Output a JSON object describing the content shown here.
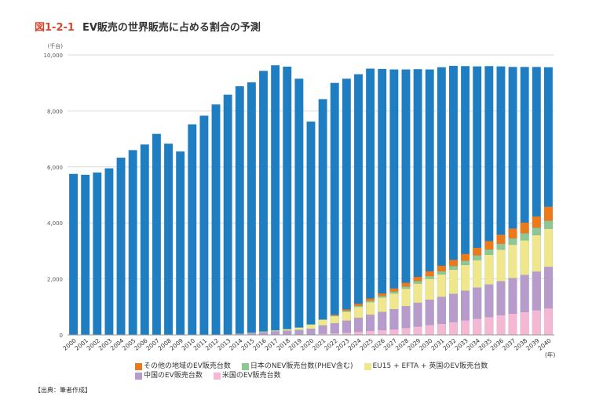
{
  "figure": {
    "number": "図1-2-1",
    "title": "EV販売の世界販売に占める割合の予測",
    "source": "【出典：筆者作成】"
  },
  "colors": {
    "total": "#1f7ec2",
    "other": "#ec7a1a",
    "japan": "#8fc794",
    "eu": "#f0e68c",
    "china": "#b79ccb",
    "us": "#f5b8d4",
    "grid": "#d9d9d9",
    "axis_text": "#555555"
  },
  "chart_data": {
    "type": "bar",
    "ylabel": "(千台)",
    "xlabel": "(年)",
    "ylim": [
      0,
      10000
    ],
    "yticks": [
      "0",
      "2,000",
      "4,000",
      "6,000",
      "8,000",
      "10,000"
    ],
    "categories": [
      "2000",
      "2001",
      "2002",
      "2003",
      "2004",
      "2005",
      "2006",
      "2007",
      "2008",
      "2009",
      "2010",
      "2011",
      "2012",
      "2013",
      "2014",
      "2015",
      "2016",
      "2017",
      "2018",
      "2019",
      "2020",
      "2021",
      "2022",
      "2023",
      "2024",
      "2025",
      "2026",
      "2027",
      "2028",
      "2029",
      "2030",
      "2031",
      "2032",
      "2033",
      "2034",
      "2035",
      "2036",
      "2037",
      "2038",
      "2039",
      "2040"
    ],
    "total": [
      5750,
      5720,
      5800,
      5950,
      6330,
      6600,
      6800,
      7180,
      6830,
      6550,
      7520,
      7830,
      8230,
      8580,
      8880,
      9020,
      9430,
      9630,
      9580,
      9150,
      7620,
      8420,
      9000,
      9150,
      9310,
      9510,
      9500,
      9480,
      9480,
      9490,
      9480,
      9560,
      9610,
      9600,
      9590,
      9600,
      9590,
      9570,
      9570,
      9570,
      9560
    ],
    "series": [
      {
        "key": "us",
        "name": "米国のEV販売台数",
        "values": [
          0,
          0,
          0,
          0,
          0,
          0,
          0,
          0,
          0,
          0,
          0,
          0,
          0,
          0,
          0,
          0,
          0,
          0,
          5,
          10,
          20,
          40,
          60,
          80,
          110,
          140,
          170,
          200,
          250,
          300,
          350,
          400,
          460,
          520,
          580,
          640,
          700,
          760,
          820,
          880,
          950
        ]
      },
      {
        "key": "china",
        "name": "中国のEV販売台数",
        "values": [
          0,
          0,
          0,
          0,
          0,
          0,
          0,
          0,
          0,
          0,
          0,
          5,
          10,
          20,
          40,
          70,
          100,
          130,
          150,
          170,
          200,
          300,
          360,
          430,
          500,
          580,
          650,
          720,
          780,
          850,
          910,
          960,
          1010,
          1060,
          1110,
          1160,
          1220,
          1270,
          1320,
          1380,
          1480
        ]
      },
      {
        "key": "eu",
        "name": "EU15 + EFTA + 英国のEV販売台数",
        "values": [
          0,
          0,
          0,
          0,
          0,
          0,
          0,
          0,
          0,
          0,
          0,
          0,
          0,
          0,
          5,
          10,
          20,
          30,
          50,
          80,
          150,
          200,
          250,
          320,
          390,
          450,
          510,
          560,
          620,
          680,
          740,
          800,
          860,
          920,
          980,
          1060,
          1120,
          1190,
          1240,
          1300,
          1360
        ]
      },
      {
        "key": "japan",
        "name": "日本のNEV販売台数(PHEV含む)",
        "values": [
          0,
          0,
          0,
          0,
          0,
          0,
          0,
          0,
          0,
          0,
          0,
          0,
          0,
          0,
          0,
          0,
          0,
          0,
          0,
          10,
          10,
          15,
          20,
          30,
          40,
          50,
          60,
          70,
          80,
          90,
          100,
          110,
          130,
          150,
          170,
          190,
          210,
          230,
          250,
          270,
          290
        ]
      },
      {
        "key": "other",
        "name": "その他の地域のEV販売台数",
        "values": [
          0,
          0,
          0,
          0,
          0,
          0,
          0,
          0,
          0,
          0,
          0,
          0,
          0,
          0,
          0,
          0,
          0,
          0,
          0,
          0,
          0,
          0,
          30,
          50,
          70,
          80,
          90,
          110,
          130,
          150,
          170,
          200,
          220,
          240,
          270,
          300,
          330,
          350,
          380,
          400,
          500
        ]
      }
    ],
    "legend_rows": [
      [
        "other",
        "japan",
        "eu"
      ],
      [
        "china",
        "us"
      ]
    ]
  }
}
